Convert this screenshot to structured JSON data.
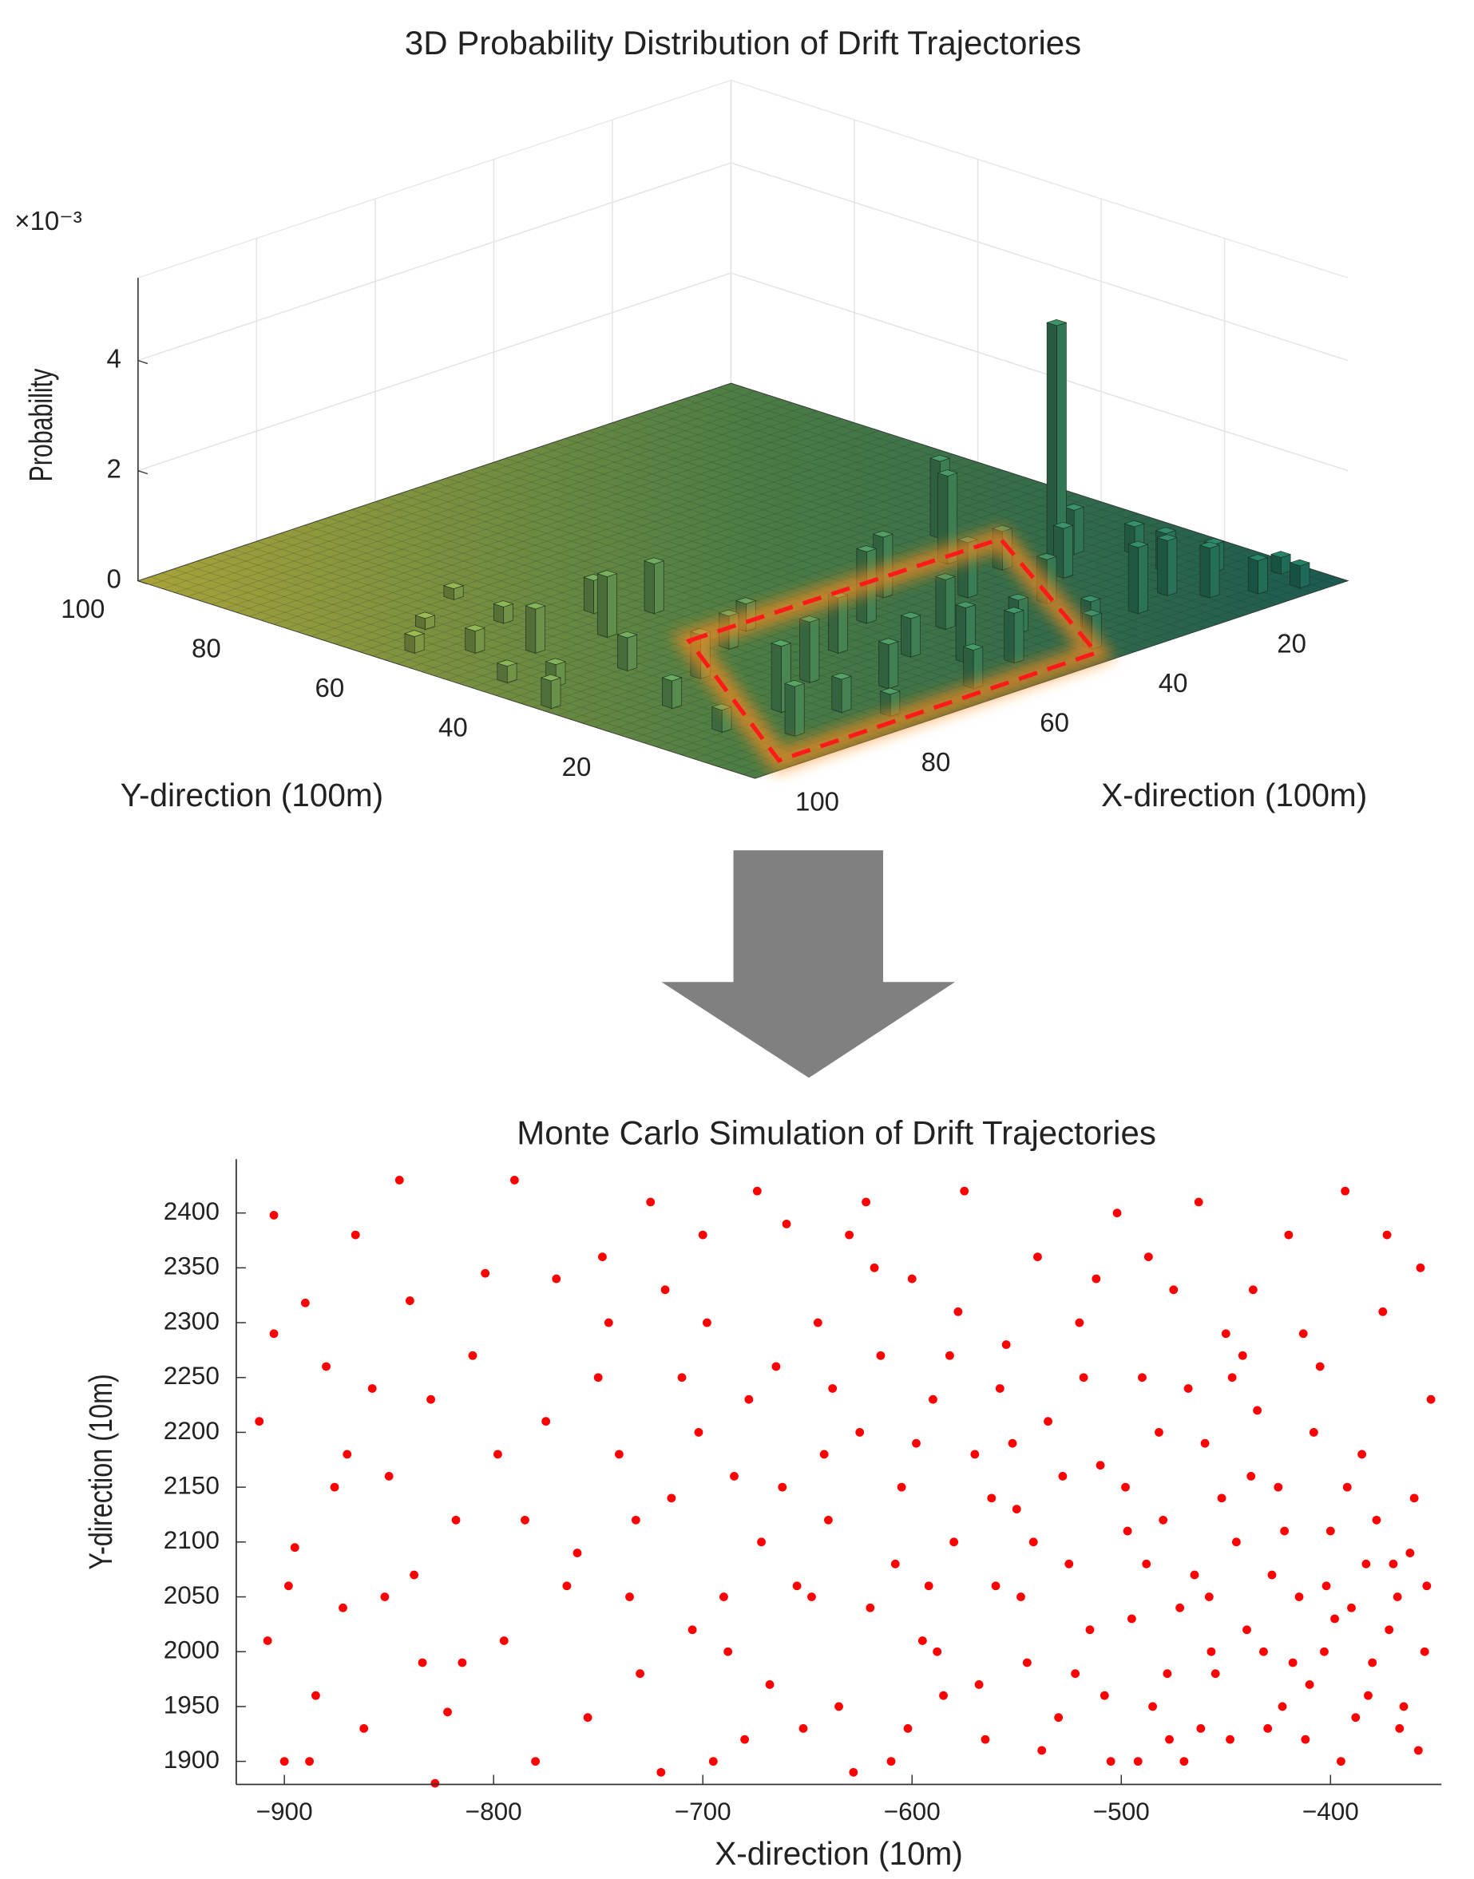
{
  "chart_data": [
    {
      "type": "bar3d",
      "title": "3D Probability Distribution of Drift Trajectories",
      "xlabel": "X-direction (100m)",
      "ylabel": "Y-direction (100m)",
      "zlabel": "Probability",
      "zscale_label": "×10⁻³",
      "xlim": [
        0,
        100
      ],
      "ylim": [
        0,
        100
      ],
      "zlim": [
        0,
        5.5
      ],
      "xticks": [
        20,
        40,
        60,
        80,
        100
      ],
      "yticks": [
        20,
        40,
        60,
        80,
        100
      ],
      "zticks": [
        0,
        2,
        4
      ],
      "grid": true,
      "x": [
        85,
        80,
        75,
        70,
        65,
        60,
        55,
        50,
        45,
        40,
        35,
        30,
        25,
        88,
        78,
        68,
        58,
        48,
        42,
        33,
        28,
        22,
        72,
        62,
        52,
        38,
        90,
        82,
        95,
        90,
        85,
        80,
        75,
        70,
        88,
        95,
        65,
        78,
        98,
        92,
        20,
        18,
        15,
        12,
        10,
        8,
        5,
        25,
        22,
        15,
        10,
        3
      ],
      "y": [
        8,
        15,
        10,
        20,
        12,
        25,
        18,
        30,
        22,
        15,
        28,
        20,
        32,
        25,
        30,
        35,
        5,
        8,
        35,
        10,
        38,
        25,
        5,
        38,
        12,
        5,
        15,
        38,
        45,
        55,
        50,
        60,
        48,
        55,
        65,
        60,
        50,
        70,
        35,
        40,
        28,
        12,
        8,
        18,
        5,
        14,
        3,
        10,
        45,
        30,
        25,
        8
      ],
      "values": [
        0.9,
        1.2,
        0.6,
        1.1,
        0.8,
        1.0,
        0.7,
        1.3,
        0.9,
        0.6,
        1.0,
        0.8,
        0.7,
        0.5,
        0.8,
        0.6,
        0.7,
        0.9,
        1.1,
        0.5,
        1.6,
        0.9,
        0.4,
        0.5,
        1.0,
        0.6,
        0.4,
        0.6,
        0.3,
        0.4,
        0.8,
        0.3,
        1.1,
        0.6,
        0.2,
        0.3,
        0.9,
        0.2,
        0.5,
        0.4,
        4.4,
        1.0,
        0.9,
        0.7,
        0.6,
        0.5,
        0.4,
        1.2,
        1.4,
        0.8,
        0.5,
        0.3
      ]
    },
    {
      "type": "scatter",
      "title": "Monte Carlo Simulation of Drift Trajectories",
      "xlabel": "X-direction (10m)",
      "ylabel": "Y-direction (10m)",
      "color": "#ff0000",
      "xlim": [
        -923,
        -347
      ],
      "ylim": [
        1879,
        2449
      ],
      "xticks": [
        {
          "value": -900,
          "label": "−900"
        },
        {
          "value": -800,
          "label": "−800"
        },
        {
          "value": -700,
          "label": "−700"
        },
        {
          "value": -600,
          "label": "−600"
        },
        {
          "value": -500,
          "label": "−500"
        },
        {
          "value": -400,
          "label": "−400"
        }
      ],
      "yticks": [
        1900,
        1950,
        2000,
        2050,
        2100,
        2150,
        2200,
        2250,
        2300,
        2350,
        2400
      ],
      "x": [
        -905,
        -890,
        -912,
        -880,
        -895,
        -908,
        -870,
        -885,
        -900,
        -862,
        -845,
        -830,
        -852,
        -818,
        -876,
        -840,
        -815,
        -905,
        -866,
        -828,
        -850,
        -898,
        -810,
        -872,
        -838,
        -822,
        -888,
        -858,
        -804,
        -834,
        -790,
        -775,
        -760,
        -745,
        -730,
        -715,
        -700,
        -690,
        -680,
        -665,
        -795,
        -770,
        -755,
        -740,
        -725,
        -710,
        -695,
        -685,
        -672,
        -660,
        -785,
        -765,
        -750,
        -735,
        -720,
        -705,
        -698,
        -678,
        -668,
        -655,
        -798,
        -780,
        -748,
        -732,
        -718,
        -702,
        -688,
        -674,
        -662,
        -652,
        -645,
        -640,
        -635,
        -630,
        -625,
        -620,
        -615,
        -610,
        -605,
        -600,
        -595,
        -590,
        -585,
        -580,
        -575,
        -570,
        -565,
        -560,
        -555,
        -550,
        -545,
        -540,
        -535,
        -530,
        -525,
        -520,
        -515,
        -510,
        -505,
        -502,
        -648,
        -638,
        -628,
        -618,
        -608,
        -598,
        -588,
        -578,
        -568,
        -558,
        -548,
        -538,
        -528,
        -518,
        -508,
        -642,
        -622,
        -602,
        -582,
        -562,
        -542,
        -522,
        -512,
        -592,
        -552,
        -495,
        -490,
        -485,
        -480,
        -475,
        -470,
        -465,
        -460,
        -455,
        -450,
        -445,
        -440,
        -435,
        -430,
        -425,
        -420,
        -415,
        -410,
        -405,
        -400,
        -395,
        -390,
        -385,
        -380,
        -375,
        -370,
        -365,
        -360,
        -355,
        -352,
        -498,
        -488,
        -478,
        -468,
        -458,
        -448,
        -438,
        -428,
        -418,
        -408,
        -398,
        -388,
        -378,
        -368,
        -358,
        -492,
        -482,
        -472,
        -462,
        -452,
        -442,
        -432,
        -422,
        -412,
        -402,
        -392,
        -382,
        -372,
        -362,
        -354,
        -487,
        -463,
        -437,
        -413,
        -393,
        -373,
        -357,
        -447,
        -423,
        -403,
        -383,
        -367,
        -497,
        -477,
        -457
      ],
      "y": [
        2398,
        2318,
        2210,
        2260,
        2095,
        2010,
        2180,
        1960,
        1900,
        1930,
        2430,
        2230,
        2050,
        2120,
        2150,
        2320,
        1990,
        2290,
        2380,
        1880,
        2160,
        2060,
        2270,
        2040,
        2070,
        1945,
        1900,
        2240,
        2345,
        1990,
        2430,
        2210,
        2090,
        2300,
        1980,
        2140,
        2380,
        2050,
        1920,
        2260,
        2010,
        2340,
        1940,
        2180,
        2410,
        2250,
        1900,
        2160,
        2100,
        2390,
        2120,
        2060,
        2250,
        2050,
        1890,
        2020,
        2300,
        2230,
        1970,
        2060,
        2180,
        1900,
        2360,
        2120,
        2330,
        2200,
        2000,
        2420,
        2150,
        1930,
        2300,
        2120,
        1950,
        2380,
        2200,
        2040,
        2270,
        1900,
        2150,
        2340,
        2010,
        2230,
        1960,
        2100,
        2420,
        2180,
        1920,
        2060,
        2280,
        2130,
        1990,
        2360,
        2210,
        1940,
        2080,
        2300,
        2020,
        2170,
        1900,
        2400,
        2050,
        2240,
        1890,
        2350,
        2080,
        2190,
        2000,
        2310,
        1970,
        2240,
        2050,
        1910,
        2160,
        2250,
        1960,
        2180,
        2410,
        1930,
        2270,
        2140,
        2100,
        1980,
        2340,
        2060,
        2190,
        2030,
        2250,
        1950,
        2120,
        2330,
        1900,
        2070,
        2190,
        1980,
        2290,
        2100,
        2020,
        2220,
        1930,
        2150,
        2380,
        2050,
        1970,
        2260,
        2110,
        1900,
        2040,
        2180,
        1990,
        2310,
        2080,
        1950,
        2140,
        2000,
        2230,
        2150,
        2080,
        1980,
        2240,
        2050,
        1920,
        2160,
        2070,
        1990,
        2200,
        2030,
        1940,
        2120,
        2050,
        1910,
        1900,
        2200,
        2040,
        1930,
        2140,
        2270,
        2000,
        2110,
        1920,
        2060,
        2150,
        1960,
        2020,
        2090,
        2060,
        2360,
        2410,
        2330,
        2290,
        2420,
        2380,
        2350,
        2250,
        1950,
        2000,
        2080,
        1930,
        2110,
        1920,
        2000
      ]
    }
  ]
}
